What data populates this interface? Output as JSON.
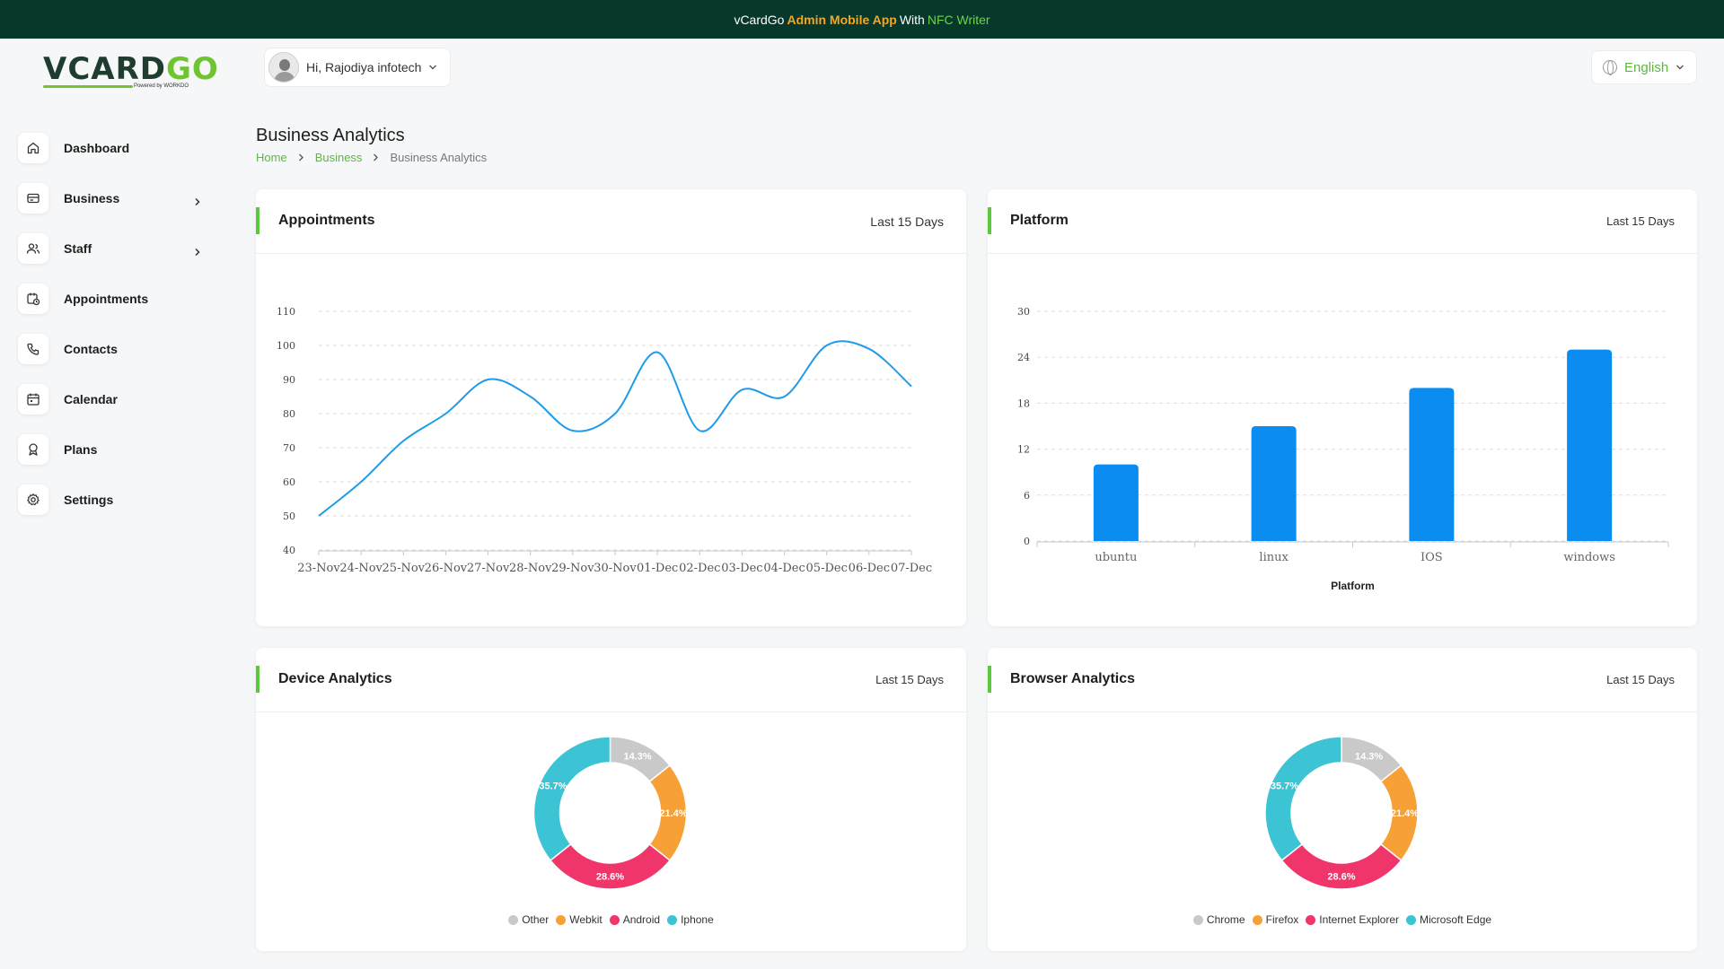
{
  "banner": {
    "prefix": "vCardGo",
    "accent": "Admin Mobile App",
    "middle": "With",
    "green": "NFC Writer"
  },
  "logo": {
    "text_main": "VCARD",
    "text_accent": "GO",
    "sub": "Powered by WORKDO"
  },
  "header": {
    "greeting": "Hi, Rajodiya infotech",
    "language": "English"
  },
  "sidebar": {
    "items": [
      {
        "label": "Dashboard",
        "icon": "home-icon",
        "has_children": false
      },
      {
        "label": "Business",
        "icon": "business-card-icon",
        "has_children": true
      },
      {
        "label": "Staff",
        "icon": "users-icon",
        "has_children": true
      },
      {
        "label": "Appointments",
        "icon": "calendar-clock-icon",
        "has_children": false
      },
      {
        "label": "Contacts",
        "icon": "phone-icon",
        "has_children": false
      },
      {
        "label": "Calendar",
        "icon": "calendar-icon",
        "has_children": false
      },
      {
        "label": "Plans",
        "icon": "award-icon",
        "has_children": false
      },
      {
        "label": "Settings",
        "icon": "gear-icon",
        "has_children": false
      }
    ]
  },
  "page": {
    "title": "Business Analytics",
    "breadcrumb": [
      "Home",
      "Business",
      "Business Analytics"
    ]
  },
  "cards": {
    "appointments": {
      "title": "Appointments",
      "range": "Last 15 Days"
    },
    "platform": {
      "title": "Platform",
      "range": "Last 15 Days"
    },
    "device": {
      "title": "Device Analytics",
      "range": "Last 15 Days"
    },
    "browser": {
      "title": "Browser Analytics",
      "range": "Last 15 Days"
    }
  },
  "colors": {
    "brand_green": "#5cc83f",
    "banner_bg": "#06382b",
    "banner_accent": "#f5a623",
    "line": "#1e9be9",
    "bar": "#0a8cf0",
    "grey": "#c9c9c9",
    "orange": "#f7a036",
    "pink": "#f0356b",
    "teal": "#3cc4d4"
  },
  "chart_data": [
    {
      "type": "line",
      "title": "Appointments",
      "x": [
        "23-Nov",
        "24-Nov",
        "25-Nov",
        "26-Nov",
        "27-Nov",
        "28-Nov",
        "29-Nov",
        "30-Nov",
        "01-Dec",
        "02-Dec",
        "03-Dec",
        "04-Dec",
        "05-Dec",
        "06-Dec",
        "07-Dec"
      ],
      "series": [
        {
          "values": [
            50,
            60,
            72,
            80,
            90,
            85,
            75,
            80,
            98,
            75,
            87,
            85,
            100,
            99,
            88
          ]
        }
      ],
      "ylim": [
        40,
        110
      ],
      "yticks": [
        40,
        50,
        60,
        70,
        80,
        90,
        100,
        110
      ],
      "grid": true
    },
    {
      "type": "bar",
      "title": "Platform",
      "categories": [
        "ubuntu",
        "linux",
        "IOS",
        "windows"
      ],
      "values": [
        10,
        15,
        20,
        25
      ],
      "xlabel": "Platform",
      "ylim": [
        0,
        30
      ],
      "yticks": [
        0,
        6,
        12,
        18,
        24,
        30
      ],
      "grid": true
    },
    {
      "type": "pie",
      "title": "Device Analytics",
      "categories": [
        "Other",
        "Webkit",
        "Android",
        "Iphone"
      ],
      "values": [
        14.3,
        21.4,
        28.6,
        35.7
      ],
      "labels": [
        "14.3%",
        "21.4%",
        "28.6%",
        "35.7%"
      ],
      "legend": "bottom"
    },
    {
      "type": "pie",
      "title": "Browser Analytics",
      "categories": [
        "Chrome",
        "Firefox",
        "Internet Explorer",
        "Microsoft Edge"
      ],
      "values": [
        14.3,
        21.4,
        28.6,
        35.7
      ],
      "labels": [
        "14.3%",
        "21.4%",
        "28.6%",
        "35.7%"
      ],
      "legend": "bottom"
    }
  ]
}
